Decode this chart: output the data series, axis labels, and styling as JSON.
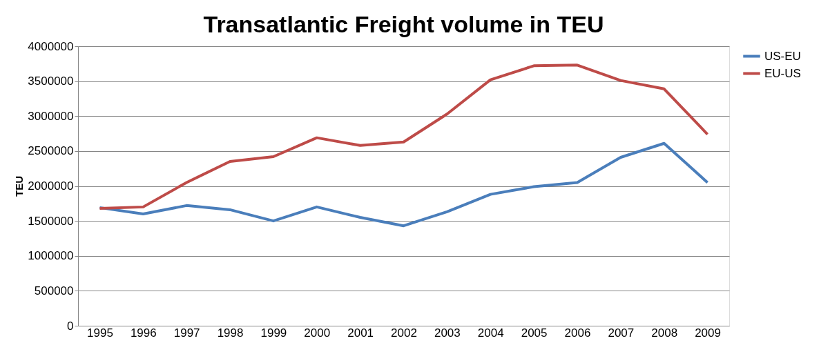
{
  "chart_data": {
    "type": "line",
    "title": "Transatlantic Freight volume in TEU",
    "ylabel": "TEU",
    "categories": [
      "1995",
      "1996",
      "1997",
      "1998",
      "1999",
      "2000",
      "2001",
      "2002",
      "2003",
      "2004",
      "2005",
      "2006",
      "2007",
      "2008",
      "2009"
    ],
    "series": [
      {
        "name": "US-EU",
        "color": "#4a7ebb",
        "values": [
          1690000,
          1600000,
          1720000,
          1660000,
          1500000,
          1700000,
          1550000,
          1430000,
          1630000,
          1880000,
          1990000,
          2050000,
          2410000,
          2610000,
          2050000
        ]
      },
      {
        "name": "EU-US",
        "color": "#be4b48",
        "values": [
          1680000,
          1700000,
          2050000,
          2350000,
          2420000,
          2690000,
          2580000,
          2630000,
          3030000,
          3520000,
          3720000,
          3730000,
          3510000,
          3390000,
          2740000
        ]
      }
    ],
    "ylim": [
      0,
      4000000
    ],
    "yticks": [
      0,
      500000,
      1000000,
      1500000,
      2000000,
      2500000,
      3000000,
      3500000,
      4000000
    ],
    "grid": "y",
    "legend": "right",
    "marker": "none",
    "line_style": "solid"
  }
}
